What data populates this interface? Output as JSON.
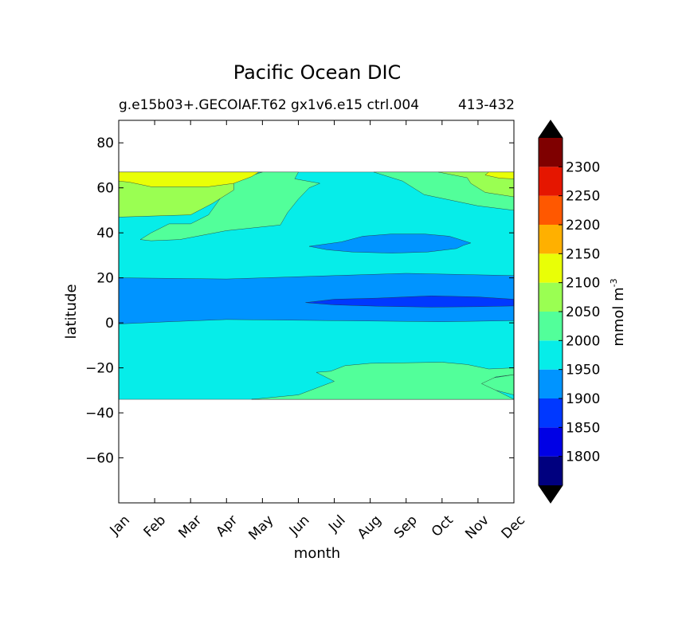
{
  "figure": {
    "suptitle": "Pacific Ocean DIC",
    "subtitle": "g.e15b03+.GECOIAF.T62 gx1v6.e15 ctrl.004",
    "subtitle_years": "413-432"
  },
  "chart_data": {
    "type": "contourf",
    "title": "Pacific Ocean DIC",
    "xlabel": "month",
    "ylabel": "latitude",
    "colorbar_label": "mmol m",
    "colorbar_label_exp": "-3",
    "xticks": [
      "Jan",
      "Feb",
      "Mar",
      "Apr",
      "May",
      "Jun",
      "Jul",
      "Aug",
      "Sep",
      "Oct",
      "Nov",
      "Dec"
    ],
    "xlim": [
      0,
      11
    ],
    "ylim": [
      -80,
      90
    ],
    "yticks": [
      80,
      60,
      40,
      20,
      0,
      -20,
      -40,
      -60
    ],
    "ytick_labels": [
      "80",
      "60",
      "40",
      "20",
      "0",
      "−20",
      "−40",
      "−60"
    ],
    "data_lat_range": [
      -34,
      67
    ],
    "levels": [
      1750,
      1775,
      1800,
      1825,
      1850,
      1875,
      1900,
      1925,
      1950,
      1975,
      2000,
      2025,
      2050,
      2075,
      2100,
      2125,
      2150,
      2175,
      2200,
      2225,
      2250,
      2275,
      2300,
      2325,
      2350
    ],
    "colorbar_tick_values": [
      1800,
      1850,
      1900,
      1950,
      2000,
      2050,
      2100,
      2150,
      2200,
      2250,
      2300
    ],
    "colorbar_tick_labels": [
      "1800",
      "1850",
      "1900",
      "1950",
      "2000",
      "2050",
      "2100",
      "2150",
      "2200",
      "2250",
      "2300"
    ],
    "colorbar_bands": [
      {
        "lo": 1750,
        "hi": 1800,
        "color": "#00007f"
      },
      {
        "lo": 1800,
        "hi": 1850,
        "color": "#0000e5"
      },
      {
        "lo": 1850,
        "hi": 1900,
        "color": "#0038ff"
      },
      {
        "lo": 1900,
        "hi": 1950,
        "color": "#0094ff"
      },
      {
        "lo": 1950,
        "hi": 2000,
        "color": "#06ede9"
      },
      {
        "lo": 2000,
        "hi": 2050,
        "color": "#52ff9a"
      },
      {
        "lo": 2050,
        "hi": 2100,
        "color": "#9aff52"
      },
      {
        "lo": 2100,
        "hi": 2150,
        "color": "#e9ff06"
      },
      {
        "lo": 2150,
        "hi": 2200,
        "color": "#ffb000"
      },
      {
        "lo": 2200,
        "hi": 2250,
        "color": "#ff5800"
      },
      {
        "lo": 2250,
        "hi": 2300,
        "color": "#e51600"
      },
      {
        "lo": 2300,
        "hi": 2350,
        "color": "#7f0000"
      }
    ],
    "extend_colors": {
      "under": "#000000",
      "over": "#000000"
    },
    "regions": [
      {
        "level": 1975,
        "color": "#06ede9",
        "points": [
          [
            0,
            67
          ],
          [
            11,
            67
          ],
          [
            11,
            -34
          ],
          [
            0,
            -34
          ]
        ]
      },
      {
        "level": 2025,
        "color": "#52ff9a",
        "points": [
          [
            0,
            67
          ],
          [
            4,
            67
          ],
          [
            3.2,
            63
          ],
          [
            2.9,
            57
          ],
          [
            2.5,
            48
          ],
          [
            2,
            44
          ],
          [
            1.4,
            44
          ],
          [
            0.9,
            40
          ],
          [
            0.6,
            37
          ],
          [
            0.9,
            36.5
          ],
          [
            1.7,
            37
          ],
          [
            3,
            41
          ],
          [
            4.5,
            43.5
          ],
          [
            4.7,
            49
          ],
          [
            5,
            55
          ],
          [
            5.3,
            60
          ],
          [
            5.6,
            62
          ],
          [
            4.9,
            64
          ],
          [
            5,
            67
          ]
        ]
      },
      {
        "level": 2025,
        "color": "#52ff9a",
        "points": [
          [
            7.1,
            67
          ],
          [
            11,
            67
          ],
          [
            11,
            50
          ],
          [
            10,
            52
          ],
          [
            8.5,
            57
          ],
          [
            7.9,
            63
          ]
        ]
      },
      {
        "level": 2075,
        "color": "#9aff52",
        "points": [
          [
            0,
            67
          ],
          [
            3.8,
            67
          ],
          [
            3.2,
            63
          ],
          [
            3.2,
            59
          ],
          [
            2.6,
            53
          ],
          [
            2,
            48
          ],
          [
            0,
            47
          ]
        ]
      },
      {
        "level": 2075,
        "color": "#9aff52",
        "points": [
          [
            8.9,
            67
          ],
          [
            11,
            67
          ],
          [
            11,
            56
          ],
          [
            10.2,
            58
          ],
          [
            9.8,
            62
          ],
          [
            9.7,
            64.5
          ]
        ]
      },
      {
        "level": 2125,
        "color": "#e9ff06",
        "points": [
          [
            0,
            67
          ],
          [
            3.9,
            67
          ],
          [
            3.7,
            65
          ],
          [
            3.2,
            62
          ],
          [
            2.5,
            60.5
          ],
          [
            0.9,
            60.5
          ],
          [
            0.3,
            62.5
          ],
          [
            0,
            63
          ]
        ]
      },
      {
        "level": 2125,
        "color": "#e9ff06",
        "points": [
          [
            10.3,
            67
          ],
          [
            11,
            67
          ],
          [
            11,
            64
          ],
          [
            10.6,
            64.3
          ],
          [
            10.2,
            65.7
          ]
        ]
      },
      {
        "level": 1925,
        "color": "#0094ff",
        "points": [
          [
            0,
            20
          ],
          [
            3,
            19.5
          ],
          [
            6,
            21
          ],
          [
            8,
            22
          ],
          [
            11,
            21
          ],
          [
            11,
            1
          ],
          [
            9,
            0.5
          ],
          [
            6,
            1
          ],
          [
            3,
            1.5
          ],
          [
            1.4,
            0.5
          ],
          [
            0,
            -0.5
          ]
        ]
      },
      {
        "level": 1925,
        "color": "#0094ff",
        "points": [
          [
            5.3,
            34
          ],
          [
            6.2,
            36
          ],
          [
            6.8,
            38.5
          ],
          [
            7.6,
            39.5
          ],
          [
            8.5,
            39.5
          ],
          [
            9.2,
            38.5
          ],
          [
            9.5,
            37
          ],
          [
            9.8,
            35.5
          ],
          [
            9.6,
            34.5
          ],
          [
            9.4,
            33
          ],
          [
            8.6,
            31.5
          ],
          [
            7.6,
            31
          ],
          [
            6.5,
            31.5
          ],
          [
            5.8,
            32.5
          ]
        ]
      },
      {
        "level": 1875,
        "color": "#0038ff",
        "points": [
          [
            5.2,
            9
          ],
          [
            6,
            10.5
          ],
          [
            7.2,
            11
          ],
          [
            8.7,
            12
          ],
          [
            10,
            11.5
          ],
          [
            11,
            10.5
          ],
          [
            11,
            7.5
          ],
          [
            10,
            7.2
          ],
          [
            8.7,
            7
          ],
          [
            7.2,
            7.4
          ],
          [
            6,
            8
          ]
        ]
      },
      {
        "level": 2025,
        "color": "#52ff9a",
        "points": [
          [
            3.7,
            -34
          ],
          [
            11,
            -34
          ],
          [
            11,
            -23
          ],
          [
            10.2,
            -25
          ],
          [
            9.8,
            -27
          ],
          [
            10,
            -29
          ],
          [
            10.5,
            -30
          ],
          [
            11,
            -32
          ],
          [
            11,
            -34
          ]
        ]
      },
      {
        "level": 2025,
        "color": "#52ff9a",
        "points": [
          [
            3.7,
            -34
          ],
          [
            5,
            -32
          ],
          [
            5.5,
            -29
          ],
          [
            6,
            -26
          ],
          [
            5.5,
            -22
          ],
          [
            5.9,
            -21.5
          ],
          [
            6.3,
            -19
          ],
          [
            7,
            -18
          ],
          [
            9,
            -17.5
          ],
          [
            9.7,
            -18.5
          ],
          [
            10.3,
            -20.5
          ],
          [
            11,
            -20
          ],
          [
            11,
            -23
          ],
          [
            10.5,
            -24
          ],
          [
            10.1,
            -27
          ],
          [
            10.5,
            -30
          ],
          [
            11,
            -34
          ]
        ]
      }
    ]
  }
}
